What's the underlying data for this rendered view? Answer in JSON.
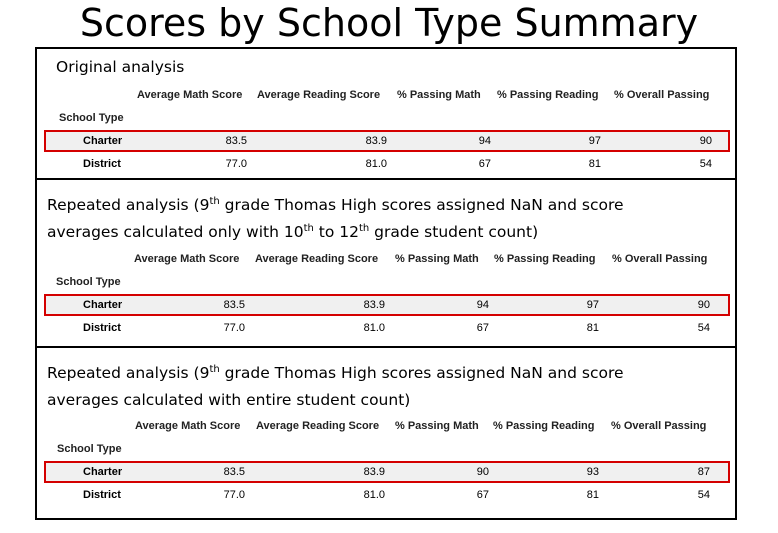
{
  "page": {
    "title": "Scores by School Type Summary"
  },
  "columns": [
    "Average Math Score",
    "Average Reading Score",
    "% Passing Math",
    "% Passing Reading",
    "% Overall Passing"
  ],
  "index_label": "School Type",
  "panels": [
    {
      "description_parts": [
        "Original analysis"
      ],
      "rows": [
        {
          "label": "Charter",
          "values": [
            "83.5",
            "83.9",
            "94",
            "97",
            "90"
          ]
        },
        {
          "label": "District",
          "values": [
            "77.0",
            "81.0",
            "67",
            "81",
            "54"
          ]
        }
      ]
    },
    {
      "description_parts": [
        "Repeated analysis (9",
        "th",
        " grade Thomas High scores assigned NaN and score",
        "averages calculated only with 10",
        "th",
        " to 12",
        "th",
        " grade student count)"
      ],
      "rows": [
        {
          "label": "Charter",
          "values": [
            "83.5",
            "83.9",
            "94",
            "97",
            "90"
          ]
        },
        {
          "label": "District",
          "values": [
            "77.0",
            "81.0",
            "67",
            "81",
            "54"
          ]
        }
      ]
    },
    {
      "description_parts": [
        "Repeated analysis (9",
        "th",
        " grade Thomas High scores assigned NaN and score",
        "averages calculated with entire student count)"
      ],
      "rows": [
        {
          "label": "Charter",
          "values": [
            "83.5",
            "83.9",
            "90",
            "93",
            "87"
          ]
        },
        {
          "label": "District",
          "values": [
            "77.0",
            "81.0",
            "67",
            "81",
            "54"
          ]
        }
      ]
    }
  ],
  "colors": {
    "highlight": "#d40000",
    "row_shade": "#f0f0f0",
    "border": "#000000"
  }
}
